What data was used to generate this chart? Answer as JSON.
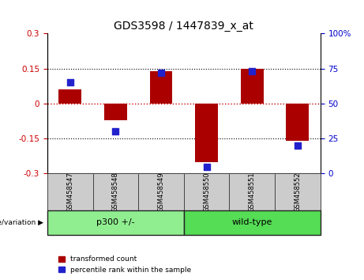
{
  "title": "GDS3598 / 1447839_x_at",
  "samples": [
    "GSM458547",
    "GSM458548",
    "GSM458549",
    "GSM458550",
    "GSM458551",
    "GSM458552"
  ],
  "red_values": [
    0.06,
    -0.07,
    0.14,
    -0.25,
    0.15,
    -0.16
  ],
  "blue_values": [
    65,
    30,
    72,
    5,
    73,
    20
  ],
  "group_label": "genotype/variation",
  "group1_label": "p300 +/-",
  "group1_range": [
    0,
    2
  ],
  "group2_label": "wild-type",
  "group2_range": [
    3,
    5
  ],
  "ylim_left": [
    -0.3,
    0.3
  ],
  "ylim_right": [
    0,
    100
  ],
  "yticks_left": [
    -0.3,
    -0.15,
    0,
    0.15,
    0.3
  ],
  "yticks_right": [
    0,
    25,
    50,
    75,
    100
  ],
  "red_color": "#aa0000",
  "blue_color": "#2222cc",
  "bar_width": 0.5,
  "dot_size": 40,
  "legend_red": "transformed count",
  "legend_blue": "percentile rank within the sample",
  "left_tick_color": "#cc0000",
  "right_tick_color": "#0000cc",
  "bg_color": "#ffffff",
  "plot_bg": "#ffffff",
  "sample_box_color": "#cccccc",
  "group_box_color": "#90ee90",
  "group_box_color2": "#55dd55"
}
